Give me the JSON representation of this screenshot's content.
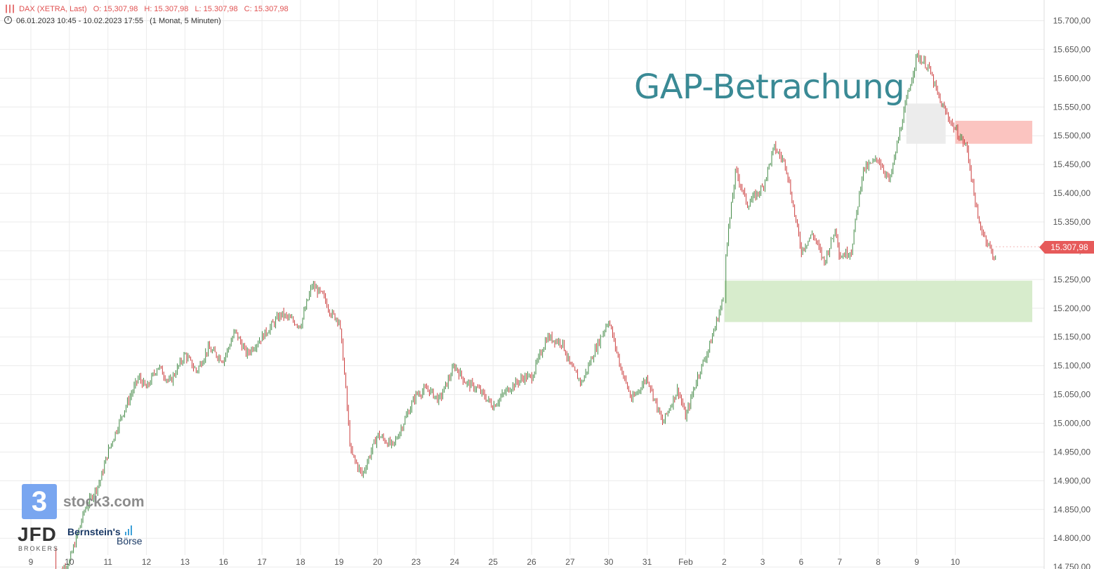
{
  "header": {
    "instrument": "DAX (XETRA, Last)",
    "open": "O: 15,307,98",
    "high": "H: 15.307,98",
    "low": "L: 15.307,98",
    "close": "C: 15.307,98",
    "range": "06.01.2023 10:45 - 10.02.2023 17:55",
    "interval": "(1 Monat, 5 Minuten)"
  },
  "annotation": {
    "title": "GAP-Betrachung"
  },
  "last_price": "15.307,98",
  "branding": {
    "stock3_digit": "3",
    "stock3": "stock3.com",
    "jfd": "JFD",
    "jfd_sub": "BROKERS",
    "bernstein": "Bernstein's",
    "boerse": "Börse"
  },
  "colors": {
    "up": "#2e7d32",
    "down": "#c62828",
    "grid": "#ebebeb",
    "gap_green": "#d7eccc",
    "gap_red": "#fbc4c0",
    "gap_grey": "#ececec",
    "title": "#3a8a95",
    "price_tag": "#e65a5a"
  },
  "chart_data": {
    "type": "line",
    "title": "GAP-Betrachung",
    "xlabel": "",
    "ylabel": "",
    "ylim": [
      14750,
      15725
    ],
    "grid": true,
    "y_ticks": [
      "14.750,00",
      "14.800,00",
      "14.850,00",
      "14.900,00",
      "14.950,00",
      "15.000,00",
      "15.050,00",
      "15.100,00",
      "15.150,00",
      "15.200,00",
      "15.250,00",
      "15.300,00",
      "15.350,00",
      "15.400,00",
      "15.450,00",
      "15.500,00",
      "15.550,00",
      "15.600,00",
      "15.650,00",
      "15.700,00"
    ],
    "x_tick_labels": [
      "9",
      "10",
      "11",
      "12",
      "13",
      "16",
      "17",
      "18",
      "19",
      "20",
      "23",
      "24",
      "25",
      "26",
      "27",
      "30",
      "31",
      "Feb",
      "2",
      "3",
      "6",
      "7",
      "8",
      "9",
      "10"
    ],
    "series": [
      {
        "x": [
          0,
          0.3,
          0.6,
          1,
          1.4,
          1.8,
          2,
          2.4,
          2.8,
          3,
          3.3,
          3.6,
          4,
          4.3,
          4.6,
          5,
          5.3,
          5.6,
          6,
          6.5,
          7,
          7.3,
          7.6,
          7.8,
          8,
          8.1,
          8.3,
          8.6,
          9,
          9.4,
          9.8,
          10,
          10.3,
          10.6,
          11,
          11.3,
          11.6,
          12,
          12.4,
          12.8,
          13,
          13.4,
          13.8,
          14,
          14.3,
          14.6,
          15,
          15.3,
          15.6,
          16,
          16.4,
          16.8,
          17,
          17.3,
          17.6,
          17.9,
          18,
          18.01,
          18.3,
          18.6,
          19,
          19.3,
          19.6,
          20,
          20.3,
          20.6,
          20.9,
          21,
          21.3,
          21.6,
          22,
          22.3,
          22.6,
          23,
          23.3,
          23.6,
          24,
          24.3,
          24.6,
          25,
          25.4,
          25.8,
          26
        ],
        "values": [
          14780,
          14800,
          14730,
          14760,
          14850,
          14900,
          14950,
          15020,
          15080,
          15060,
          15100,
          15070,
          15120,
          15090,
          15130,
          15110,
          15160,
          15120,
          15150,
          15190,
          15170,
          15240,
          15220,
          15190,
          15180,
          15120,
          14950,
          14910,
          14980,
          14960,
          15020,
          15050,
          15060,
          15040,
          15100,
          15070,
          15060,
          15030,
          15060,
          15080,
          15080,
          15150,
          15140,
          15100,
          15070,
          15120,
          15180,
          15100,
          15040,
          15080,
          15000,
          15060,
          15010,
          15080,
          15130,
          15200,
          15220,
          15280,
          15440,
          15380,
          15410,
          15480,
          15450,
          15300,
          15330,
          15280,
          15340,
          15290,
          15300,
          15440,
          15460,
          15420,
          15520,
          15640,
          15620,
          15560,
          15510,
          15480,
          15350,
          15290,
          15260,
          15330,
          15307
        ]
      }
    ],
    "gap_zones": [
      {
        "color": "green",
        "x": [
          18.01,
          26.0
        ],
        "y": [
          15176,
          15248
        ]
      },
      {
        "color": "red",
        "x": [
          24.0,
          26.0
        ],
        "y": [
          15486,
          15526
        ]
      },
      {
        "color": "grey",
        "x": [
          22.73,
          23.75
        ],
        "y": [
          15486,
          15556
        ]
      }
    ]
  }
}
